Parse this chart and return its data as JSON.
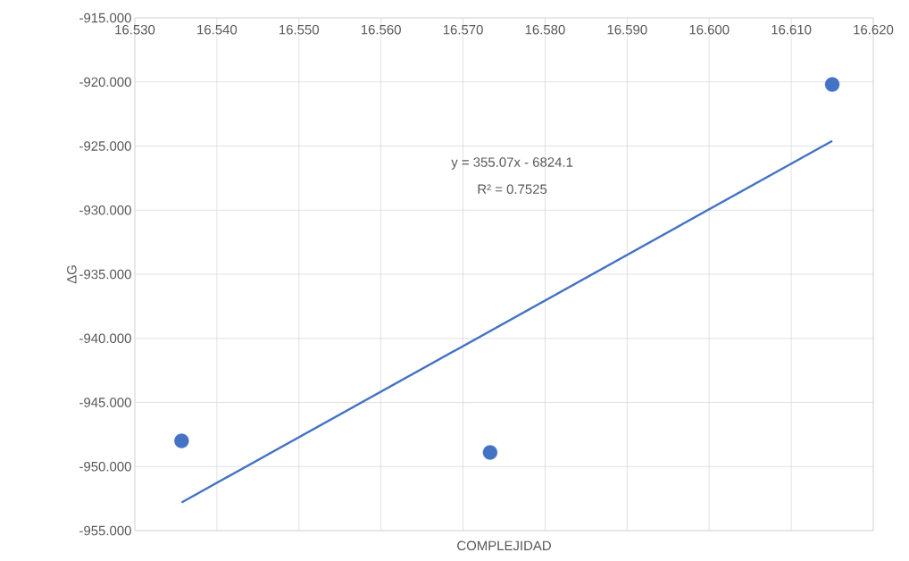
{
  "chart_data": {
    "type": "scatter",
    "xlabel": "COMPLEJIDAD",
    "ylabel": "ΔG",
    "xlim": [
      16.53,
      16.62
    ],
    "ylim": [
      -955,
      -915
    ],
    "xticks": [
      {
        "value": 16.53,
        "label": "16.530"
      },
      {
        "value": 16.54,
        "label": "16.540"
      },
      {
        "value": 16.55,
        "label": "16.550"
      },
      {
        "value": 16.56,
        "label": "16.560"
      },
      {
        "value": 16.57,
        "label": "16.570"
      },
      {
        "value": 16.58,
        "label": "16.580"
      },
      {
        "value": 16.59,
        "label": "16.590"
      },
      {
        "value": 16.6,
        "label": "16.600"
      },
      {
        "value": 16.61,
        "label": "16.610"
      },
      {
        "value": 16.62,
        "label": "16.620"
      }
    ],
    "yticks": [
      {
        "value": -915,
        "label": "-915.000"
      },
      {
        "value": -920,
        "label": "-920.000"
      },
      {
        "value": -925,
        "label": "-925.000"
      },
      {
        "value": -930,
        "label": "-930.000"
      },
      {
        "value": -935,
        "label": "-935.000"
      },
      {
        "value": -940,
        "label": "-940.000"
      },
      {
        "value": -945,
        "label": "-945.000"
      },
      {
        "value": -950,
        "label": "-950.000"
      },
      {
        "value": -955,
        "label": "-955.000"
      }
    ],
    "grid": true,
    "series": [
      {
        "marker": "circle",
        "color": "#4472c4",
        "x": [
          16.5357,
          16.5733,
          16.615
        ],
        "values": [
          -948.0,
          -948.9,
          -920.2
        ]
      },
      {
        "type": "line",
        "marker": "none",
        "color": "#4472c4",
        "x": [
          16.5357,
          16.615
        ],
        "values": [
          -952.8,
          -924.6
        ]
      }
    ],
    "annotations": [
      "y = 355.07x - 6824.1",
      "R² = 0.7525"
    ]
  }
}
